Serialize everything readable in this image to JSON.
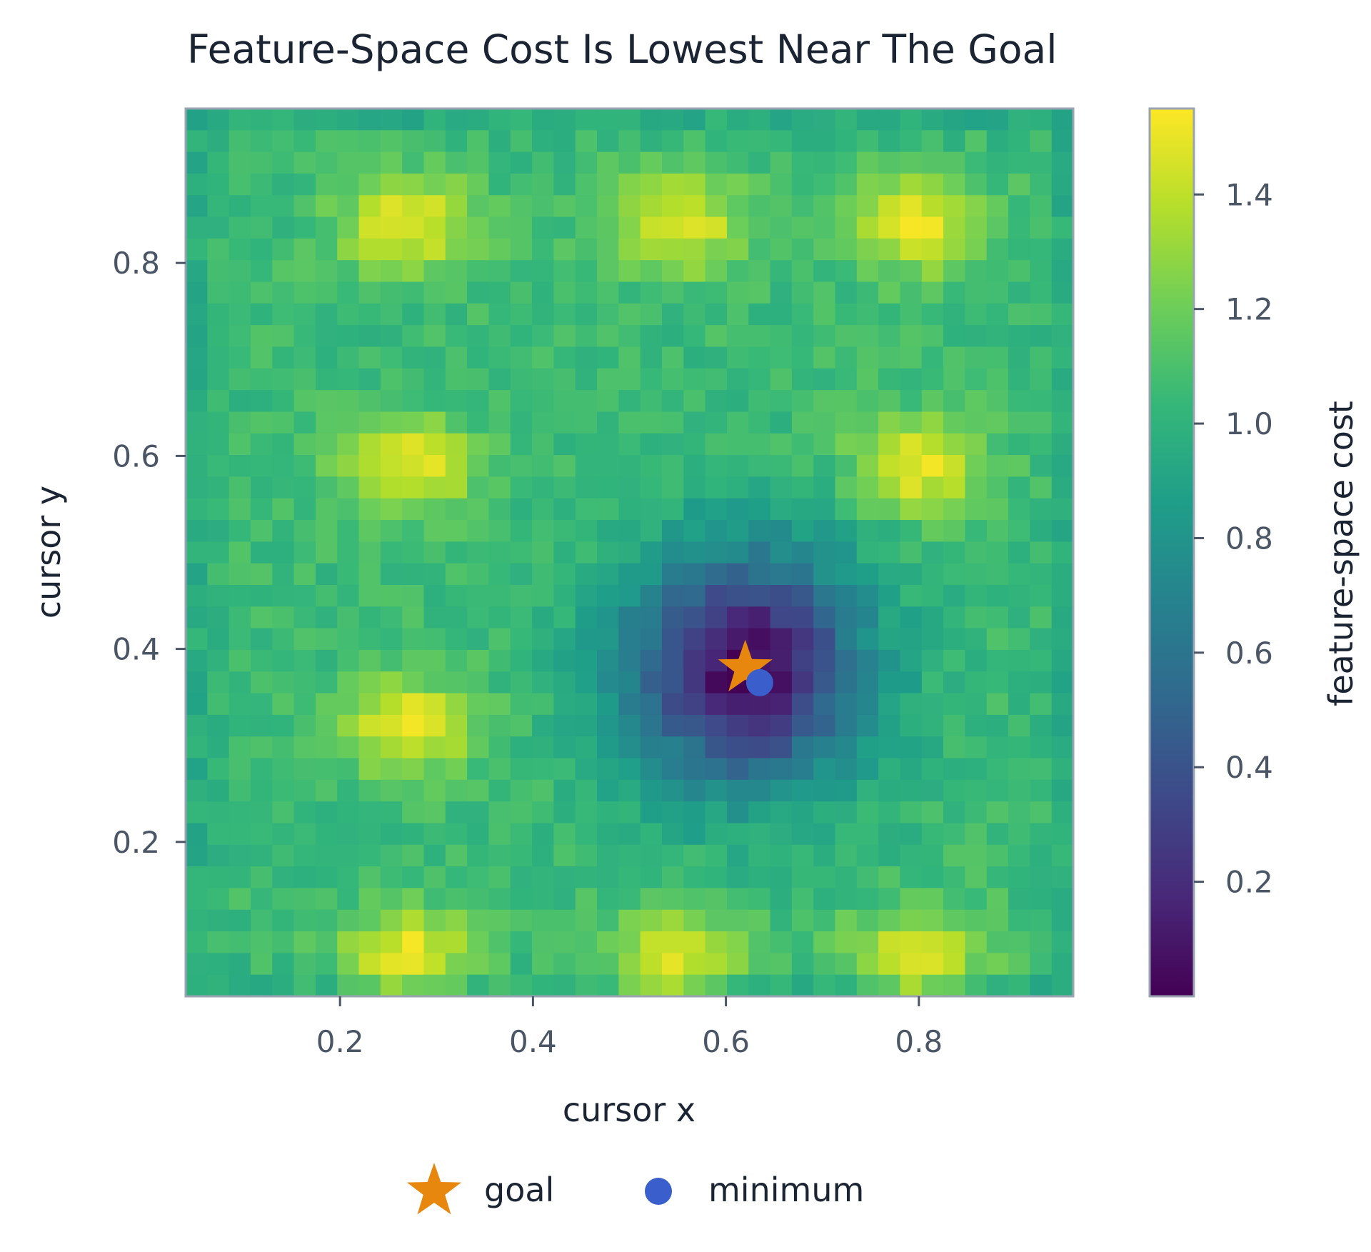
{
  "chart_data": {
    "type": "heatmap",
    "title": "Feature-Space Cost Is Lowest Near The Goal",
    "xlabel": "cursor x",
    "ylabel": "cursor y",
    "xlim": [
      0.04,
      0.96
    ],
    "ylim": [
      0.04,
      0.96
    ],
    "grid": false,
    "x_ticks": [
      0.2,
      0.4,
      0.6,
      0.8
    ],
    "y_ticks": [
      0.2,
      0.4,
      0.6,
      0.8
    ],
    "grid_size": [
      41,
      41
    ],
    "colormap": "viridis",
    "colorbar": {
      "label": "feature-space cost",
      "range": [
        0.0,
        1.55
      ],
      "ticks": [
        0.2,
        0.4,
        0.6,
        0.8,
        1.0,
        1.2,
        1.4
      ]
    },
    "field": {
      "background_cost": 1.05,
      "bright_spot_cost": 1.5,
      "bright_spots": [
        [
          0.27,
          0.84
        ],
        [
          0.55,
          0.84
        ],
        [
          0.8,
          0.84
        ],
        [
          0.27,
          0.59
        ],
        [
          0.8,
          0.59
        ],
        [
          0.27,
          0.32
        ],
        [
          0.27,
          0.08
        ],
        [
          0.55,
          0.08
        ],
        [
          0.8,
          0.08
        ]
      ],
      "basin_center": [
        0.62,
        0.38
      ],
      "basin_min_cost": 0.02
    },
    "markers": [
      {
        "name": "goal",
        "shape": "star",
        "x": 0.62,
        "y": 0.38,
        "color": "#e8870d"
      },
      {
        "name": "minimum",
        "shape": "circle",
        "x": 0.635,
        "y": 0.365,
        "color": "#3a5fcd"
      }
    ],
    "legend": {
      "placement": "bottom",
      "entries": [
        {
          "label": "goal",
          "shape": "star",
          "color": "#e8870d"
        },
        {
          "label": "minimum",
          "shape": "circle",
          "color": "#3a5fcd"
        }
      ]
    }
  }
}
